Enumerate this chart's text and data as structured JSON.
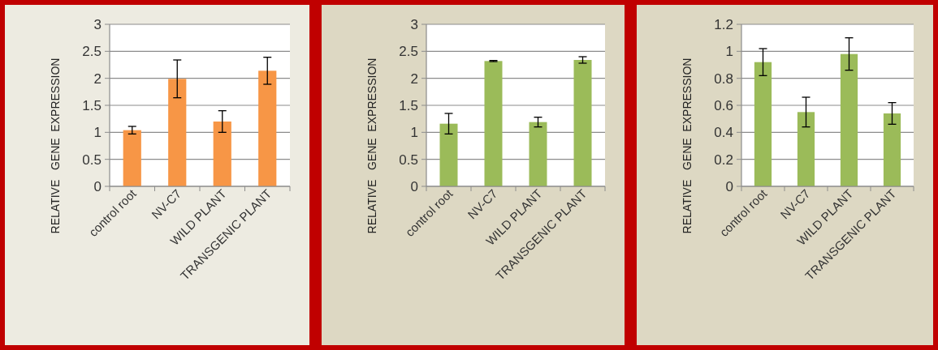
{
  "chart_data": [
    {
      "type": "bar",
      "ylabel": "RELATIVE   GENE  EXPRESSION",
      "categories": [
        "control root",
        "NV-C7",
        "WILD PLANT",
        "TRANSGENIC PLANT"
      ],
      "values": [
        1.04,
        1.99,
        1.2,
        2.14
      ],
      "errors": [
        0.07,
        0.35,
        0.2,
        0.25
      ],
      "color": "#f79646",
      "ylim": [
        0,
        3
      ],
      "yticks": [
        0,
        0.5,
        1,
        1.5,
        2,
        2.5,
        3
      ],
      "grid": "y"
    },
    {
      "type": "bar",
      "ylabel": "RELATIVE   GENE  EXPRESSION",
      "categories": [
        "control root",
        "NV-C7",
        "WILD PLANT",
        "TRANSGENIC PLANT"
      ],
      "values": [
        1.16,
        2.32,
        1.19,
        2.34
      ],
      "errors": [
        0.19,
        0.01,
        0.09,
        0.06
      ],
      "color": "#9bbb59",
      "ylim": [
        0,
        3
      ],
      "yticks": [
        0,
        0.5,
        1,
        1.5,
        2,
        2.5,
        3
      ],
      "grid": "y"
    },
    {
      "type": "bar",
      "ylabel": "RELATIVE   GENE  EXPRESSION",
      "categories": [
        "control root",
        "NV-C7",
        "WILD PLANT",
        "TRANSGENIC PLANT"
      ],
      "values": [
        0.92,
        0.55,
        0.98,
        0.54
      ],
      "errors": [
        0.1,
        0.11,
        0.12,
        0.08
      ],
      "color": "#9bbb59",
      "ylim": [
        0,
        1.2
      ],
      "yticks": [
        0,
        0.2,
        0.4,
        0.6,
        0.8,
        1,
        1.2
      ],
      "grid": "y"
    }
  ]
}
